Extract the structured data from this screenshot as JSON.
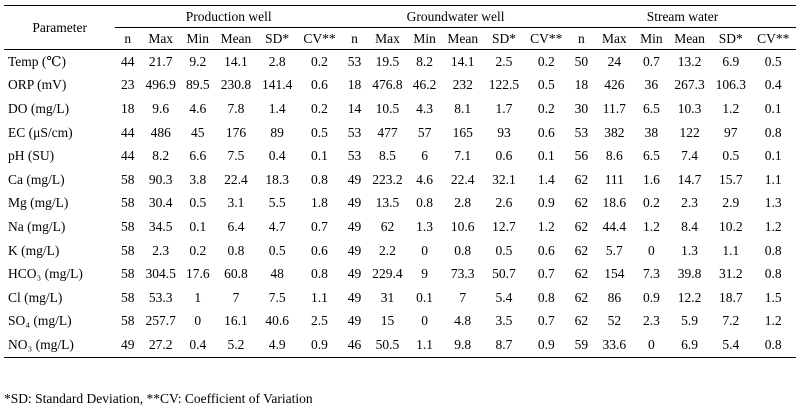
{
  "table": {
    "param_header": "Parameter",
    "groups": [
      "Production well",
      "Groundwater well",
      "Stream water"
    ],
    "subcols": [
      "n",
      "Max",
      "Min",
      "Mean",
      "SD*",
      "CV**"
    ],
    "rows": [
      {
        "label": "Temp (℃)",
        "values": [
          "44",
          "21.7",
          "9.2",
          "14.1",
          "2.8",
          "0.2",
          "53",
          "19.5",
          "8.2",
          "14.1",
          "2.5",
          "0.2",
          "50",
          "24",
          "0.7",
          "13.2",
          "6.9",
          "0.5"
        ]
      },
      {
        "label": "ORP (mV)",
        "values": [
          "23",
          "496.9",
          "89.5",
          "230.8",
          "141.4",
          "0.6",
          "18",
          "476.8",
          "46.2",
          "232",
          "122.5",
          "0.5",
          "18",
          "426",
          "36",
          "267.3",
          "106.3",
          "0.4"
        ]
      },
      {
        "label": "DO (mg/L)",
        "values": [
          "18",
          "9.6",
          "4.6",
          "7.8",
          "1.4",
          "0.2",
          "14",
          "10.5",
          "4.3",
          "8.1",
          "1.7",
          "0.2",
          "30",
          "11.7",
          "6.5",
          "10.3",
          "1.2",
          "0.1"
        ]
      },
      {
        "label": "EC (μS/cm)",
        "values": [
          "44",
          "486",
          "45",
          "176",
          "89",
          "0.5",
          "53",
          "477",
          "57",
          "165",
          "93",
          "0.6",
          "53",
          "382",
          "38",
          "122",
          "97",
          "0.8"
        ]
      },
      {
        "label": "pH (SU)",
        "values": [
          "44",
          "8.2",
          "6.6",
          "7.5",
          "0.4",
          "0.1",
          "53",
          "8.5",
          "6",
          "7.1",
          "0.6",
          "0.1",
          "56",
          "8.6",
          "6.5",
          "7.4",
          "0.5",
          "0.1"
        ]
      },
      {
        "label": "Ca (mg/L)",
        "values": [
          "58",
          "90.3",
          "3.8",
          "22.4",
          "18.3",
          "0.8",
          "49",
          "223.2",
          "4.6",
          "22.4",
          "32.1",
          "1.4",
          "62",
          "111",
          "1.6",
          "14.7",
          "15.7",
          "1.1"
        ]
      },
      {
        "label": "Mg (mg/L)",
        "values": [
          "58",
          "30.4",
          "0.5",
          "3.1",
          "5.5",
          "1.8",
          "49",
          "13.5",
          "0.8",
          "2.8",
          "2.6",
          "0.9",
          "62",
          "18.6",
          "0.2",
          "2.3",
          "2.9",
          "1.3"
        ]
      },
      {
        "label": "Na (mg/L)",
        "values": [
          "58",
          "34.5",
          "0.1",
          "6.4",
          "4.7",
          "0.7",
          "49",
          "62",
          "1.3",
          "10.6",
          "12.7",
          "1.2",
          "62",
          "44.4",
          "1.2",
          "8.4",
          "10.2",
          "1.2"
        ]
      },
      {
        "label": "K (mg/L)",
        "values": [
          "58",
          "2.3",
          "0.2",
          "0.8",
          "0.5",
          "0.6",
          "49",
          "2.2",
          "0",
          "0.8",
          "0.5",
          "0.6",
          "62",
          "5.7",
          "0",
          "1.3",
          "1.1",
          "0.8"
        ]
      },
      {
        "label": "HCO₃ (mg/L)",
        "values": [
          "58",
          "304.5",
          "17.6",
          "60.8",
          "48",
          "0.8",
          "49",
          "229.4",
          "9",
          "73.3",
          "50.7",
          "0.7",
          "62",
          "154",
          "7.3",
          "39.8",
          "31.2",
          "0.8"
        ]
      },
      {
        "label": "Cl (mg/L)",
        "values": [
          "58",
          "53.3",
          "1",
          "7",
          "7.5",
          "1.1",
          "49",
          "31",
          "0.1",
          "7",
          "5.4",
          "0.8",
          "62",
          "86",
          "0.9",
          "12.2",
          "18.7",
          "1.5"
        ]
      },
      {
        "label": "SO₄ (mg/L)",
        "values": [
          "58",
          "257.7",
          "0",
          "16.1",
          "40.6",
          "2.5",
          "49",
          "15",
          "0",
          "4.8",
          "3.5",
          "0.7",
          "62",
          "52",
          "2.3",
          "5.9",
          "7.2",
          "1.2"
        ]
      },
      {
        "label": "NO₃ (mg/L)",
        "values": [
          "49",
          "27.2",
          "0.4",
          "5.2",
          "4.9",
          "0.9",
          "46",
          "50.5",
          "1.1",
          "9.8",
          "8.7",
          "0.9",
          "59",
          "33.6",
          "0",
          "6.9",
          "5.4",
          "0.8"
        ]
      }
    ]
  },
  "footnote": "*SD: Standard Deviation, **CV: Coefficient of Variation"
}
